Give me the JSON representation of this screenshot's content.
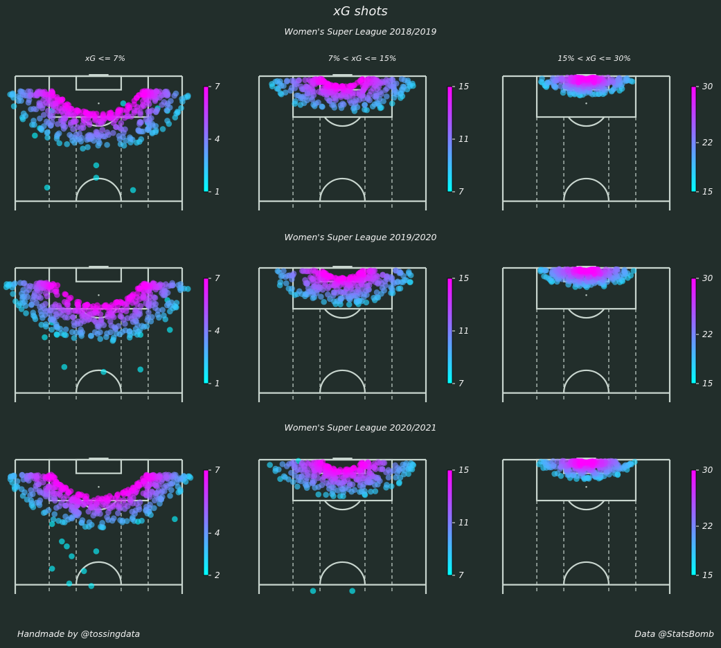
{
  "title": "xG shots",
  "credits": {
    "left": "Handmade by @tossingdata",
    "right": "Data @StatsBomb"
  },
  "theme": {
    "background": "#222e2b",
    "lines": "#c9d6cf",
    "cmap_low": "#00ffff",
    "cmap_high": "#ff00ff",
    "text": "#f2f2f2"
  },
  "columns": [
    "xG <= 7%",
    "7% < xG <= 15%",
    "15% < xG <= 30%"
  ],
  "seasons": [
    "Women's Super League 2018/2019",
    "Women's Super League 2019/2020",
    "Women's Super League 2020/2021"
  ],
  "chart_data": {
    "type": "scatter",
    "description_units": "pitch coordinates in metres from goal line (y) and from centre (x); color = xG %",
    "panels": [
      {
        "season": "Women's Super League 2018/2019",
        "bin": "xG <= 7%",
        "colorbar_ticks": [
          "1",
          "4",
          "7"
        ],
        "vmin": 1,
        "vmax": 7,
        "arc_depth": [
          15,
          30
        ],
        "arc_width": 38,
        "min_depth": 6,
        "outliers": [
          [
            -26,
            24
          ],
          [
            -24,
            21
          ],
          [
            28,
            14
          ],
          [
            -21,
            45
          ],
          [
            10,
            11
          ],
          [
            14,
            46
          ],
          [
            -1,
            41
          ],
          [
            -19,
            14
          ],
          [
            24,
            13
          ],
          [
            -1,
            36
          ],
          [
            20,
            19
          ]
        ]
      },
      {
        "season": "Women's Super League 2018/2019",
        "bin": "7% < xG <= 15%",
        "colorbar_ticks": [
          "7",
          "11",
          "15"
        ],
        "vmin": 7,
        "vmax": 15,
        "arc_depth": [
          4,
          15
        ],
        "arc_width": 30,
        "min_depth": 1,
        "outliers": []
      },
      {
        "season": "Women's Super League 2018/2019",
        "bin": "15% < xG <= 30%",
        "colorbar_ticks": [
          "15",
          "22",
          "30"
        ],
        "vmin": 15,
        "vmax": 30,
        "arc_depth": [
          1,
          8
        ],
        "arc_width": 20,
        "min_depth": 0.5,
        "outliers": []
      },
      {
        "season": "Women's Super League 2019/2020",
        "bin": "xG <= 7%",
        "colorbar_ticks": [
          "1",
          "4",
          "7"
        ],
        "vmin": 1,
        "vmax": 7,
        "arc_depth": [
          15,
          30
        ],
        "arc_width": 38,
        "min_depth": 6,
        "outliers": [
          [
            -19,
            22
          ],
          [
            -14,
            27
          ],
          [
            28,
            13
          ],
          [
            29,
            25
          ],
          [
            -14,
            40
          ],
          [
            17,
            41
          ],
          [
            2,
            42
          ],
          [
            -22,
            28
          ],
          [
            -17,
            27
          ],
          [
            17,
            27
          ]
        ]
      },
      {
        "season": "Women's Super League 2019/2020",
        "bin": "7% < xG <= 15%",
        "colorbar_ticks": [
          "7",
          "11",
          "15"
        ],
        "vmin": 7,
        "vmax": 15,
        "arc_depth": [
          4,
          15
        ],
        "arc_width": 30,
        "min_depth": 1,
        "outliers": []
      },
      {
        "season": "Women's Super League 2019/2020",
        "bin": "15% < xG <= 30%",
        "colorbar_ticks": [
          "15",
          "22",
          "30"
        ],
        "vmin": 15,
        "vmax": 30,
        "arc_depth": [
          1,
          8
        ],
        "arc_width": 20,
        "min_depth": 0.5,
        "outliers": []
      },
      {
        "season": "Women's Super League 2020/2021",
        "bin": "xG <= 7%",
        "colorbar_ticks": [
          "2",
          "4",
          "7"
        ],
        "vmin": 2,
        "vmax": 7,
        "arc_depth": [
          15,
          28
        ],
        "arc_width": 38,
        "min_depth": 6,
        "outliers": [
          [
            -19,
            26
          ],
          [
            -13,
            35
          ],
          [
            -1,
            37
          ],
          [
            -15,
            33
          ],
          [
            31,
            24
          ],
          [
            16,
            25
          ],
          [
            -6,
            45
          ],
          [
            -11,
            39
          ],
          [
            -19,
            44
          ],
          [
            -12,
            50
          ],
          [
            -3,
            51
          ]
        ]
      },
      {
        "season": "Women's Super League 2020/2021",
        "bin": "7% < xG <= 15%",
        "colorbar_ticks": [
          "7",
          "11",
          "15"
        ],
        "vmin": 7,
        "vmax": 15,
        "arc_depth": [
          4,
          15
        ],
        "arc_width": 30,
        "min_depth": 1,
        "outliers": [
          [
            -18,
            0.5
          ],
          [
            -12,
            53
          ],
          [
            4,
            53
          ]
        ]
      },
      {
        "season": "Women's Super League 2020/2021",
        "bin": "15% < xG <= 30%",
        "colorbar_ticks": [
          "15",
          "22",
          "30"
        ],
        "vmin": 15,
        "vmax": 30,
        "arc_depth": [
          1,
          8
        ],
        "arc_width": 20,
        "min_depth": 0.5,
        "outliers": []
      }
    ]
  }
}
